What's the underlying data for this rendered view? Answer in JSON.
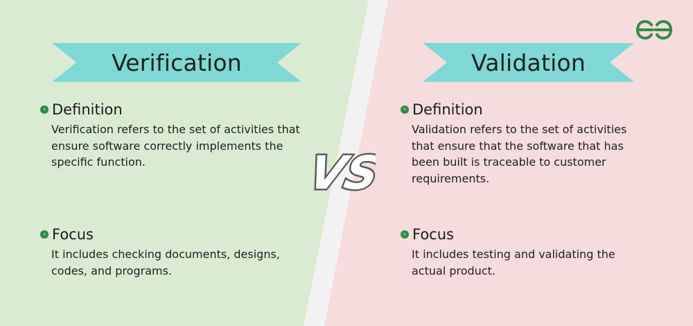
{
  "colors": {
    "left_bg": "#d9ecd2",
    "right_bg": "#f6dcdc",
    "divider": "#f0f0f0",
    "ribbon": "#7fd8d5",
    "bullet": "#2f8d46",
    "logo": "#2f8d46"
  },
  "logo": {
    "icon": "geeksforgeeks-logo"
  },
  "vs_label": "VS",
  "left": {
    "title": "Verification",
    "sections": [
      {
        "heading": "Definition",
        "text": "Verification refers to the set of activities that ensure software correctly implements the specific function."
      },
      {
        "heading": "Focus",
        "text": "It includes checking documents, designs, codes, and programs."
      }
    ]
  },
  "right": {
    "title": "Validation",
    "sections": [
      {
        "heading": "Definition",
        "text": "Validation refers to the set of activities that ensure that the software that has been built is traceable to customer requirements."
      },
      {
        "heading": "Focus",
        "text": "It includes testing and validating the actual product."
      }
    ]
  }
}
